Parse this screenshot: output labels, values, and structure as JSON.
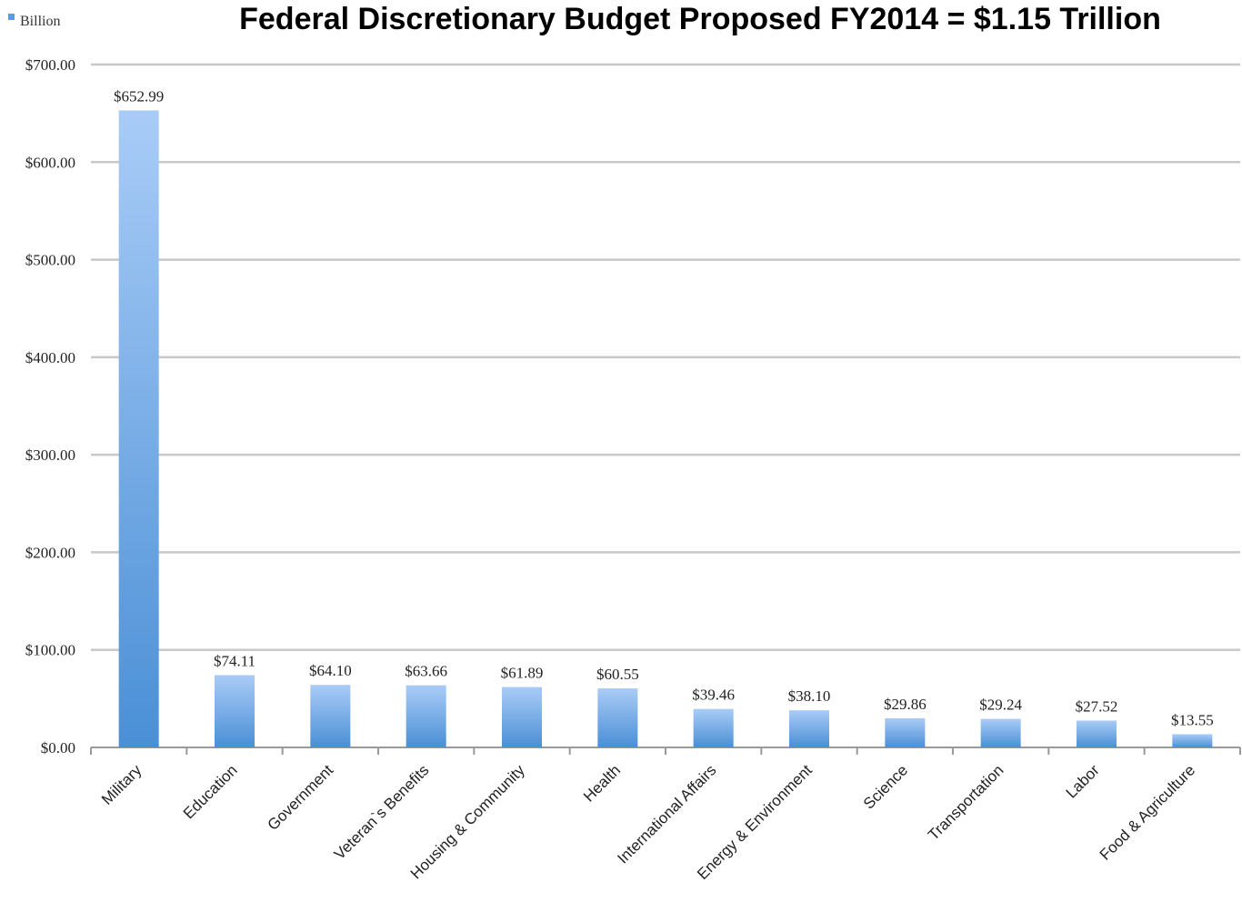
{
  "chart_data": {
    "type": "bar",
    "title": "Federal Discretionary Budget Proposed FY2014 = $1.15 Trillion",
    "legend": {
      "position": "top-left",
      "entries": [
        "Billion"
      ]
    },
    "series": [
      {
        "name": "Billion",
        "values": [
          652.99,
          74.11,
          64.1,
          63.66,
          61.89,
          60.55,
          39.46,
          38.1,
          29.86,
          29.24,
          27.52,
          13.55
        ],
        "data_labels": [
          "$652.99",
          "$74.11",
          "$64.10",
          "$63.66",
          "$61.89",
          "$60.55",
          "$39.46",
          "$38.10",
          "$29.86",
          "$29.24",
          "$27.52",
          "$13.55"
        ]
      }
    ],
    "categories": [
      "Military",
      "Education",
      "Government",
      "Veteran`s Benefits",
      "Housing & Community",
      "Health",
      "International Affairs",
      "Energy & Environment",
      "Science",
      "Transportation",
      "Labor",
      "Food & Agriculture"
    ],
    "ylim": [
      0,
      700
    ],
    "yticks": [
      0,
      100,
      200,
      300,
      400,
      500,
      600,
      700
    ],
    "ytick_labels": [
      "$0.00",
      "$100.00",
      "$200.00",
      "$300.00",
      "$400.00",
      "$500.00",
      "$600.00",
      "$700.00"
    ],
    "xlabel": "",
    "ylabel": "",
    "grid": true,
    "colors": {
      "bar_top": "#a9ccf7",
      "bar_bottom": "#4a8fd6",
      "legend_swatch": "#5b9be0"
    }
  }
}
